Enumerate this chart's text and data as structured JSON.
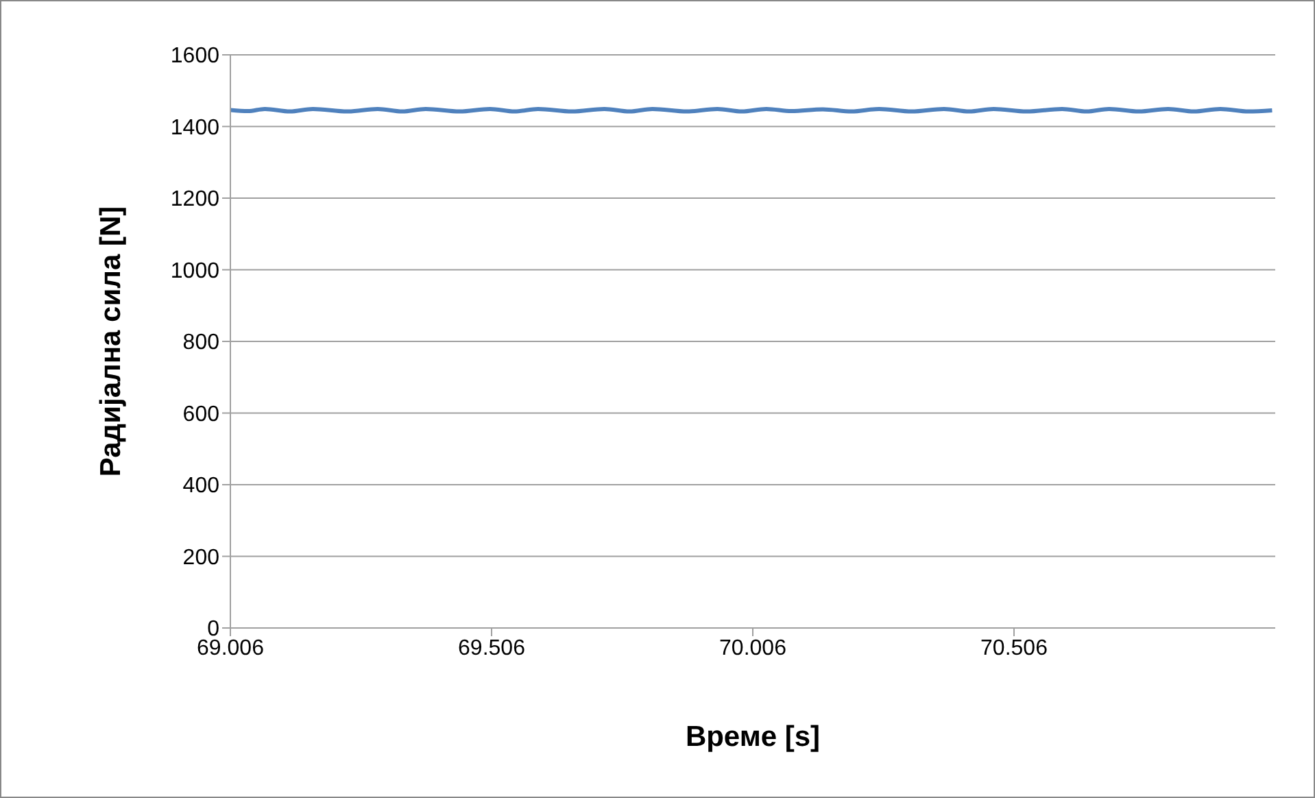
{
  "chart_data": {
    "type": "line",
    "xlabel": "Време [s]",
    "ylabel": "Радијална сила [N]",
    "x": [
      69.006,
      69.04,
      69.072,
      69.12,
      69.164,
      69.23,
      69.288,
      69.335,
      69.38,
      69.445,
      69.503,
      69.55,
      69.595,
      69.66,
      69.722,
      69.77,
      69.814,
      69.88,
      69.938,
      69.985,
      70.032,
      70.08,
      70.14,
      70.195,
      70.248,
      70.31,
      70.372,
      70.42,
      70.467,
      70.53,
      70.598,
      70.645,
      70.688,
      70.745,
      70.801,
      70.85,
      70.901,
      70.955,
      71.0
    ],
    "series": [
      {
        "color": "#4f81bd",
        "values": [
          1446,
          1443,
          1449,
          1442,
          1449,
          1442,
          1449,
          1442,
          1449,
          1442,
          1449,
          1442,
          1449,
          1442,
          1449,
          1442,
          1449,
          1442,
          1449,
          1442,
          1449,
          1443,
          1448,
          1442,
          1449,
          1442,
          1449,
          1442,
          1449,
          1442,
          1449,
          1442,
          1449,
          1442,
          1449,
          1442,
          1449,
          1442,
          1445
        ]
      }
    ],
    "xlim": [
      69.006,
      71.006
    ],
    "xticks": [
      69.006,
      69.506,
      70.006,
      70.506
    ],
    "ylim": [
      0,
      1600
    ],
    "yticks": [
      0,
      200,
      400,
      600,
      800,
      1000,
      1200,
      1400,
      1600
    ],
    "grid": "y",
    "marker": "none",
    "line_style": "solid",
    "legend": false
  }
}
